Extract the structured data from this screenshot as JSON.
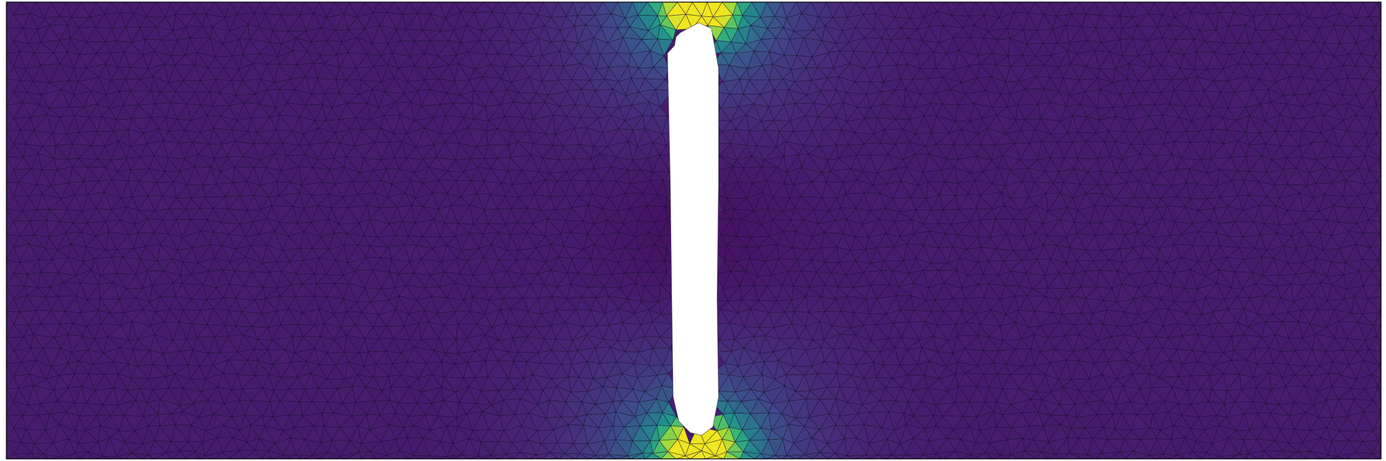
{
  "figure": {
    "kind": "finite-element mesh with scalar field colormap",
    "colormap": "viridis",
    "background": "#ffffff",
    "mesh_edge_color": "#1a1030",
    "domain_outline_color": "#000000",
    "hole_color": "#ffffff",
    "field_low_color": "#2d1a4f",
    "field_high_color": "#f2e51d",
    "hot_spots": [
      "top-center",
      "bottom-center"
    ],
    "hole_shape": "vertical slot",
    "hole_position": "center"
  }
}
